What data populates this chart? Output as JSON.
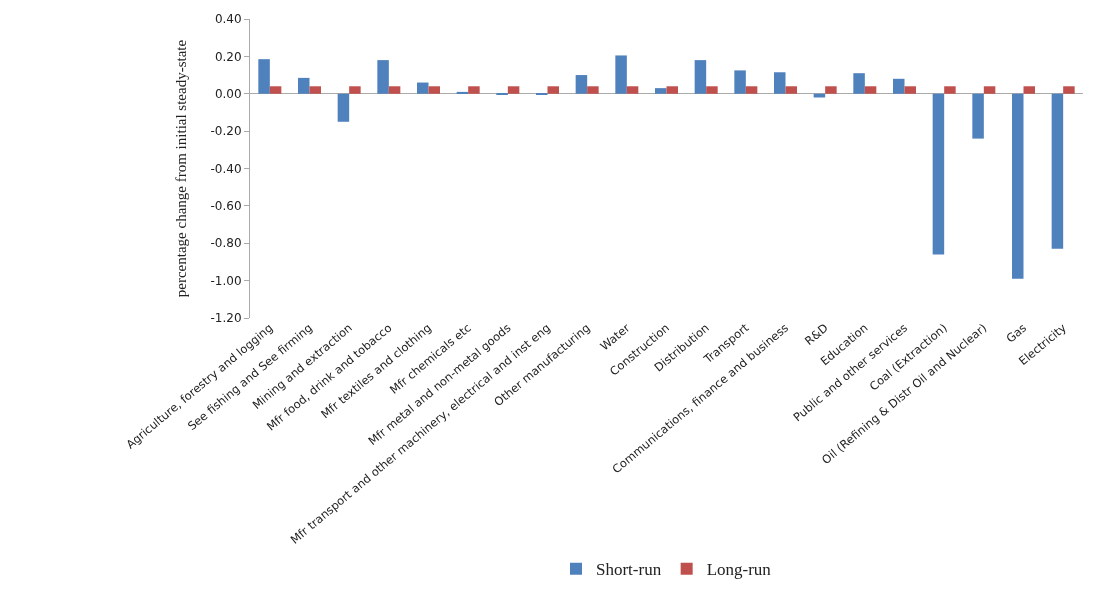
{
  "chart_data": {
    "type": "bar",
    "ylabel": "percentage change from initial steady-state",
    "categories": [
      "Agriculture, forestry and logging",
      "See fishing and See firming",
      "Mining and extraction",
      "Mfr food, drink and tobacco",
      "Mfr textiles and clothing",
      "Mfr chemicals etc",
      "Mfr metal and non-metal goods",
      "Mfr transport and other machinery, electrical and inst eng",
      "Other manufacturing",
      "Water",
      "Construction",
      "Distribution",
      "Transport",
      "Communications, finance and business",
      "R&D",
      "Education",
      "Public and other services",
      "Coal (Extraction)",
      "Oil (Refining & Distr Oil and Nuclear)",
      "Gas",
      "Electricity"
    ],
    "series": [
      {
        "name": "Short-run",
        "color": "#4f81bd",
        "values": [
          0.185,
          0.085,
          -0.15,
          0.18,
          0.06,
          0.01,
          -0.003,
          -0.005,
          0.1,
          0.205,
          0.03,
          0.18,
          0.125,
          0.115,
          -0.02,
          0.11,
          0.08,
          -0.86,
          -0.24,
          -0.99,
          -0.83
        ]
      },
      {
        "name": "Long-run",
        "color": "#c0504d",
        "values": [
          0.04,
          0.04,
          0.04,
          0.04,
          0.04,
          0.04,
          0.04,
          0.04,
          0.04,
          0.04,
          0.04,
          0.04,
          0.04,
          0.04,
          0.04,
          0.04,
          0.04,
          0.04,
          0.04,
          0.04,
          0.04
        ]
      }
    ],
    "ylim": [
      -1.2,
      0.4
    ],
    "yticks": [
      {
        "value": -1.2,
        "label": "-1.20"
      },
      {
        "value": -1.0,
        "label": "-1.00"
      },
      {
        "value": -0.8,
        "label": "-0.80"
      },
      {
        "value": -0.6,
        "label": "-0.60"
      },
      {
        "value": -0.4,
        "label": "-0.40"
      },
      {
        "value": -0.2,
        "label": "-0.20"
      },
      {
        "value": 0,
        "label": "0.00"
      },
      {
        "value": 0.2,
        "label": "0.20"
      },
      {
        "value": 0.4,
        "label": "0.40"
      }
    ],
    "legend": "bottom"
  }
}
